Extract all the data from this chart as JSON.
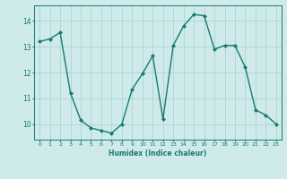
{
  "x": [
    0,
    1,
    2,
    3,
    4,
    5,
    6,
    7,
    8,
    9,
    10,
    11,
    12,
    13,
    14,
    15,
    16,
    17,
    18,
    19,
    20,
    21,
    22,
    23
  ],
  "y": [
    13.2,
    13.3,
    13.55,
    11.2,
    10.15,
    9.85,
    9.75,
    9.65,
    10.0,
    11.35,
    11.95,
    12.65,
    10.2,
    13.05,
    13.8,
    14.25,
    14.2,
    12.9,
    13.05,
    13.05,
    12.2,
    10.55,
    10.35,
    10.0
  ],
  "xlabel": "Humidex (Indice chaleur)",
  "xlim": [
    -0.5,
    23.5
  ],
  "ylim": [
    9.4,
    14.6
  ],
  "yticks": [
    10,
    11,
    12,
    13,
    14
  ],
  "xticks": [
    0,
    1,
    2,
    3,
    4,
    5,
    6,
    7,
    8,
    9,
    10,
    11,
    12,
    13,
    14,
    15,
    16,
    17,
    18,
    19,
    20,
    21,
    22,
    23
  ],
  "line_color": "#1a7a6e",
  "marker": "D",
  "marker_size": 2.0,
  "bg_color": "#ceeaea",
  "grid_color": "#afd4d4",
  "line_width": 1.0
}
